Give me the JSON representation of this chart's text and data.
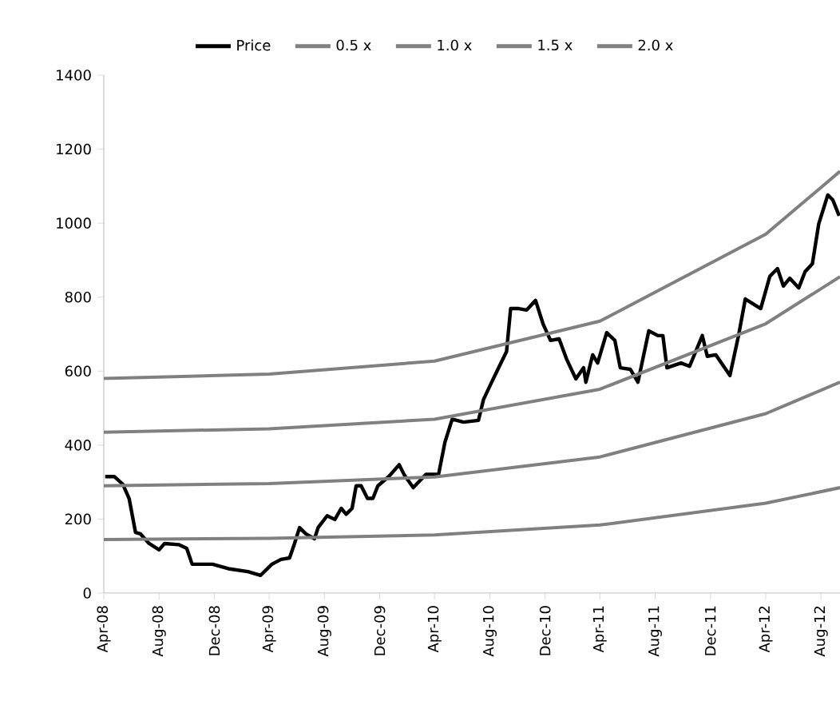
{
  "chart_data": {
    "type": "line",
    "xlim": [
      "2008-04-01",
      "2012-09-12"
    ],
    "ylim": [
      0,
      1400
    ],
    "yticks": [
      0,
      200,
      400,
      600,
      800,
      1000,
      1200,
      1400
    ],
    "xticks": [
      {
        "value": "2008-04-01",
        "label": "Apr-08"
      },
      {
        "value": "2008-08-01",
        "label": "Aug-08"
      },
      {
        "value": "2008-12-01",
        "label": "Dec-08"
      },
      {
        "value": "2009-04-01",
        "label": "Apr-09"
      },
      {
        "value": "2009-08-01",
        "label": "Aug-09"
      },
      {
        "value": "2009-12-01",
        "label": "Dec-09"
      },
      {
        "value": "2010-04-01",
        "label": "Apr-10"
      },
      {
        "value": "2010-08-01",
        "label": "Aug-10"
      },
      {
        "value": "2010-12-01",
        "label": "Dec-10"
      },
      {
        "value": "2011-04-01",
        "label": "Apr-11"
      },
      {
        "value": "2011-08-01",
        "label": "Aug-11"
      },
      {
        "value": "2011-12-01",
        "label": "Dec-11"
      },
      {
        "value": "2012-04-01",
        "label": "Apr-12"
      },
      {
        "value": "2012-08-01",
        "label": "Aug-12"
      }
    ],
    "grid": false,
    "legend": "top",
    "marker": "none",
    "line_style": "solid",
    "series": [
      {
        "name": "Price",
        "color": "#000000",
        "x": [
          "2008-04-04",
          "2008-04-24",
          "2008-05-13",
          "2008-05-27",
          "2008-06-10",
          "2008-06-21",
          "2008-07-10",
          "2008-08-01",
          "2008-08-13",
          "2008-09-13",
          "2008-10-01",
          "2008-10-13",
          "2008-11-27",
          "2009-01-01",
          "2009-02-13",
          "2009-03-13",
          "2009-04-07",
          "2009-04-27",
          "2009-05-16",
          "2009-05-27",
          "2009-06-07",
          "2009-06-21",
          "2009-07-10",
          "2009-07-18",
          "2009-08-07",
          "2009-08-24",
          "2009-09-07",
          "2009-09-18",
          "2009-10-01",
          "2009-10-10",
          "2009-10-21",
          "2009-11-04",
          "2009-11-16",
          "2009-11-27",
          "2009-12-21",
          "2010-01-13",
          "2010-01-24",
          "2010-02-13",
          "2010-03-13",
          "2010-04-10",
          "2010-04-24",
          "2010-05-10",
          "2010-06-04",
          "2010-07-07",
          "2010-07-18",
          "2010-08-07",
          "2010-08-24",
          "2010-09-07",
          "2010-09-16",
          "2010-10-04",
          "2010-10-21",
          "2010-11-10",
          "2010-11-27",
          "2010-12-13",
          "2011-01-01",
          "2011-01-18",
          "2011-02-07",
          "2011-02-24",
          "2011-03-01",
          "2011-03-16",
          "2011-03-27",
          "2011-04-16",
          "2011-05-04",
          "2011-05-16",
          "2011-06-07",
          "2011-06-24",
          "2011-07-18",
          "2011-08-07",
          "2011-08-18",
          "2011-08-27",
          "2011-09-27",
          "2011-10-16",
          "2011-11-13",
          "2011-11-24",
          "2011-12-13",
          "2012-01-13",
          "2012-02-01",
          "2012-02-16",
          "2012-03-04",
          "2012-03-21",
          "2012-04-10",
          "2012-04-27",
          "2012-05-10",
          "2012-05-24",
          "2012-06-13",
          "2012-06-27",
          "2012-07-13",
          "2012-07-27",
          "2012-08-16",
          "2012-08-27",
          "2012-09-10"
        ],
        "values": [
          315,
          315,
          294,
          255,
          164,
          160,
          134,
          117,
          134,
          131,
          121,
          78,
          78,
          66,
          58,
          48,
          78,
          91,
          95,
          134,
          177,
          160,
          147,
          177,
          209,
          199,
          229,
          213,
          229,
          290,
          290,
          256,
          256,
          290,
          315,
          347,
          320,
          285,
          321,
          321,
          408,
          470,
          462,
          467,
          523,
          575,
          618,
          653,
          769,
          769,
          765,
          791,
          726,
          683,
          687,
          631,
          579,
          609,
          570,
          644,
          622,
          704,
          683,
          609,
          605,
          570,
          709,
          696,
          696,
          609,
          622,
          613,
          696,
          640,
          644,
          588,
          696,
          795,
          782,
          769,
          856,
          877,
          830,
          851,
          825,
          869,
          890,
          998,
          1076,
          1063,
          1020
        ]
      },
      {
        "name": "0.5 x",
        "color": "#808080",
        "x": [
          "2008-04-01",
          "2009-04-01",
          "2010-04-01",
          "2011-04-01",
          "2012-04-01",
          "2012-09-12"
        ],
        "values": [
          145,
          148,
          157,
          184,
          243,
          285
        ]
      },
      {
        "name": "1.0 x",
        "color": "#808080",
        "x": [
          "2008-04-01",
          "2009-04-01",
          "2010-04-01",
          "2011-04-01",
          "2012-04-01",
          "2012-09-12"
        ],
        "values": [
          290,
          296,
          314,
          368,
          485,
          570
        ]
      },
      {
        "name": "1.5 x",
        "color": "#808080",
        "x": [
          "2008-04-01",
          "2009-04-01",
          "2010-04-01",
          "2011-04-01",
          "2012-04-01",
          "2012-09-12"
        ],
        "values": [
          435,
          444,
          470,
          551,
          728,
          855
        ]
      },
      {
        "name": "2.0 x",
        "color": "#808080",
        "x": [
          "2008-04-01",
          "2009-04-01",
          "2010-04-01",
          "2011-04-01",
          "2012-04-01",
          "2012-09-12"
        ],
        "values": [
          580,
          592,
          627,
          735,
          970,
          1140
        ]
      }
    ]
  }
}
